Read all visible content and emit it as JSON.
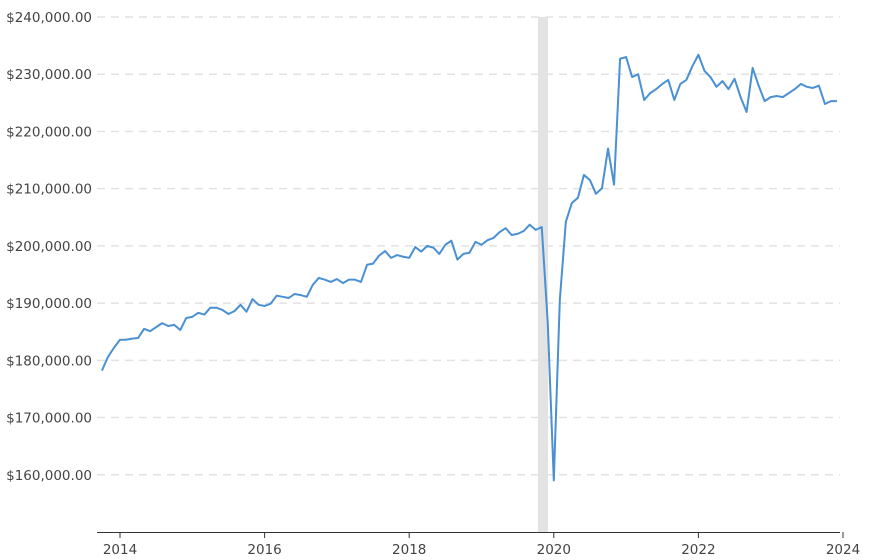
{
  "chart_data": {
    "type": "line",
    "title": "",
    "xlabel": "",
    "ylabel": "",
    "x_start": "2013-10",
    "x_frequency": "monthly",
    "xlim": [
      2013.72,
      2024.0
    ],
    "ylim": [
      150000,
      240000
    ],
    "x_ticks": [
      "2014",
      "2016",
      "2018",
      "2020",
      "2022",
      "2024"
    ],
    "y_ticks": [
      {
        "value": 160000,
        "label": "$160,000.00"
      },
      {
        "value": 170000,
        "label": "$170,000.00"
      },
      {
        "value": 180000,
        "label": "$180,000.00"
      },
      {
        "value": 190000,
        "label": "$190,000.00"
      },
      {
        "value": 200000,
        "label": "$200,000.00"
      },
      {
        "value": 210000,
        "label": "$210,000.00"
      },
      {
        "value": 220000,
        "label": "$220,000.00"
      },
      {
        "value": 230000,
        "label": "$230,000.00"
      },
      {
        "value": 240000,
        "label": "$240,000.00"
      }
    ],
    "grid": true,
    "shaded_period": [
      2019.78,
      2019.92
    ],
    "colors": {
      "line": "#4a90d2",
      "shade": "#e3e3e3",
      "grid": "#e2e2e2"
    },
    "values": [
      178200,
      180600,
      182200,
      183600,
      183600,
      183800,
      183900,
      185500,
      185100,
      185800,
      186500,
      186000,
      186200,
      185300,
      187400,
      187600,
      188300,
      188000,
      189200,
      189200,
      188800,
      188100,
      188600,
      189700,
      188500,
      190700,
      189700,
      189500,
      189900,
      191300,
      191100,
      190900,
      191600,
      191400,
      191100,
      193200,
      194400,
      194100,
      193700,
      194200,
      193500,
      194100,
      194100,
      193700,
      196700,
      196900,
      198300,
      199100,
      197900,
      198400,
      198100,
      197900,
      199800,
      199000,
      200000,
      199700,
      198600,
      200200,
      200900,
      197600,
      198600,
      198800,
      200700,
      200200,
      201000,
      201400,
      202400,
      203100,
      201900,
      202100,
      202600,
      203700,
      202800,
      203300,
      186500,
      159000,
      190600,
      204200,
      207500,
      208400,
      212400,
      211500,
      209100,
      210100,
      217000,
      210700,
      232700,
      233000,
      229500,
      230000,
      225500,
      226700,
      227400,
      228300,
      229000,
      225500,
      228300,
      229000,
      231400,
      233400,
      230600,
      229500,
      227800,
      228800,
      227400,
      229200,
      226000,
      223400,
      231100,
      228000,
      225300,
      226000,
      226200,
      226000,
      226700,
      227400,
      228300,
      227800,
      227600,
      228000,
      224800,
      225300,
      225300
    ]
  }
}
